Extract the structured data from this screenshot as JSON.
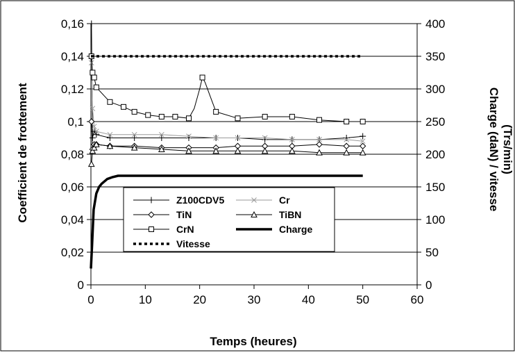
{
  "chart_data": {
    "type": "line",
    "xlabel": "Temps (heures)",
    "ylabel_left": "Coefficient de frottement",
    "ylabel_right_line1": "Charge (daN) / vitesse",
    "ylabel_right_line2": "(Trs/min)",
    "xlim": [
      0,
      60
    ],
    "ylim_left": [
      0,
      0.16
    ],
    "ylim_right": [
      0,
      400
    ],
    "grid": "horizontal",
    "legend_position": "center",
    "x_ticks": [
      0,
      10,
      20,
      30,
      40,
      50,
      60
    ],
    "x_tick_labels": [
      "0",
      "10",
      "20",
      "30",
      "40",
      "50",
      "60"
    ],
    "y_left_ticks": [
      0,
      0.02,
      0.04,
      0.06,
      0.08,
      0.1,
      0.12,
      0.14,
      0.16
    ],
    "y_left_tick_labels": [
      "0",
      "0,02",
      "0,04",
      "0,06",
      "0,08",
      "0,1",
      "0,12",
      "0,14",
      "0,16"
    ],
    "y_right_ticks": [
      0,
      50,
      100,
      150,
      200,
      250,
      300,
      350,
      400
    ],
    "y_right_tick_labels": [
      "0",
      "50",
      "100",
      "150",
      "200",
      "250",
      "300",
      "350",
      "400"
    ],
    "series": [
      {
        "name": "Z100CDV5",
        "axis": "left",
        "marker": "plus",
        "color": "#000000",
        "stroke_width": 1,
        "x": [
          0.1,
          0.3,
          0.6,
          1,
          3.5,
          8,
          13,
          18,
          23,
          27,
          32,
          37,
          42,
          47,
          50
        ],
        "y": [
          0.16,
          0.09,
          0.094,
          0.092,
          0.09,
          0.09,
          0.09,
          0.09,
          0.09,
          0.09,
          0.089,
          0.089,
          0.089,
          0.09,
          0.091
        ],
        "markers_at": [
          0.1,
          0.3,
          0.6,
          1,
          3.5,
          8,
          13,
          18,
          23,
          27,
          32,
          37,
          42,
          47,
          50
        ]
      },
      {
        "name": "Cr",
        "axis": "left",
        "marker": "x",
        "color": "#999999",
        "stroke_width": 1,
        "x": [
          0.1,
          0.3,
          0.6,
          1,
          3.5,
          8,
          13,
          18,
          23,
          27,
          32,
          37,
          42,
          47,
          50
        ],
        "y": [
          0.136,
          0.108,
          0.097,
          0.094,
          0.092,
          0.092,
          0.092,
          0.091,
          0.09,
          0.09,
          0.09,
          0.089,
          0.089,
          0.089,
          0.088
        ],
        "markers_at": [
          0.1,
          0.3,
          0.6,
          1,
          3.5,
          8,
          13,
          18,
          23,
          27,
          32,
          37,
          42,
          47,
          50
        ]
      },
      {
        "name": "TiN",
        "axis": "left",
        "marker": "diamond",
        "color": "#000000",
        "stroke_width": 1,
        "x": [
          0.1,
          0.3,
          0.6,
          1,
          3.5,
          8,
          13,
          18,
          23,
          27,
          32,
          37,
          42,
          47,
          50
        ],
        "y": [
          0.1,
          0.083,
          0.086,
          0.086,
          0.085,
          0.085,
          0.084,
          0.084,
          0.084,
          0.085,
          0.085,
          0.085,
          0.086,
          0.085,
          0.085
        ],
        "markers_at": [
          0.1,
          0.3,
          0.6,
          1,
          3.5,
          8,
          13,
          18,
          23,
          27,
          32,
          37,
          42,
          47,
          50
        ]
      },
      {
        "name": "TiBN",
        "axis": "left",
        "marker": "triangle",
        "color": "#000000",
        "stroke_width": 1,
        "x": [
          0.1,
          0.3,
          0.6,
          1,
          3.5,
          8,
          13,
          18,
          23,
          27,
          32,
          37,
          42,
          47,
          50
        ],
        "y": [
          0.074,
          0.082,
          0.084,
          0.086,
          0.085,
          0.084,
          0.083,
          0.082,
          0.082,
          0.082,
          0.082,
          0.082,
          0.081,
          0.081,
          0.081
        ],
        "markers_at": [
          0.1,
          0.3,
          0.6,
          1,
          3.5,
          8,
          13,
          18,
          23,
          27,
          32,
          37,
          42,
          47,
          50
        ]
      },
      {
        "name": "CrN",
        "axis": "left",
        "marker": "square",
        "color": "#000000",
        "stroke_width": 1,
        "x": [
          0.1,
          0.3,
          0.6,
          1,
          3.5,
          6,
          8,
          10.5,
          13,
          15.5,
          18,
          19,
          20,
          20.5,
          21,
          22,
          23,
          27,
          32,
          37,
          42,
          47,
          50
        ],
        "y": [
          0.14,
          0.13,
          0.127,
          0.121,
          0.112,
          0.109,
          0.106,
          0.104,
          0.103,
          0.103,
          0.102,
          0.108,
          0.12,
          0.127,
          0.124,
          0.115,
          0.106,
          0.102,
          0.103,
          0.103,
          0.101,
          0.1,
          0.1
        ],
        "markers_at": [
          0.1,
          0.3,
          0.6,
          1,
          3.5,
          6,
          8,
          10.5,
          13,
          15.5,
          18,
          20.5,
          23,
          27,
          32,
          37,
          42,
          47,
          50
        ]
      },
      {
        "name": "Charge",
        "axis": "right",
        "marker": "none",
        "color": "#000000",
        "stroke_width": 3.5,
        "x": [
          0,
          0.2,
          0.5,
          1,
          1.5,
          2,
          3,
          4,
          5,
          6,
          7,
          10,
          20,
          30,
          40,
          50
        ],
        "y": [
          25,
          60,
          115,
          140,
          150,
          155,
          162,
          165,
          167,
          167,
          167,
          167,
          167,
          167,
          167,
          167
        ],
        "markers_at": []
      },
      {
        "name": "Vitesse",
        "axis": "right",
        "marker": "none",
        "color": "#000000",
        "stroke_width": 3.5,
        "dashed": true,
        "x": [
          0,
          50
        ],
        "y": [
          350,
          350
        ],
        "markers_at": []
      }
    ]
  }
}
